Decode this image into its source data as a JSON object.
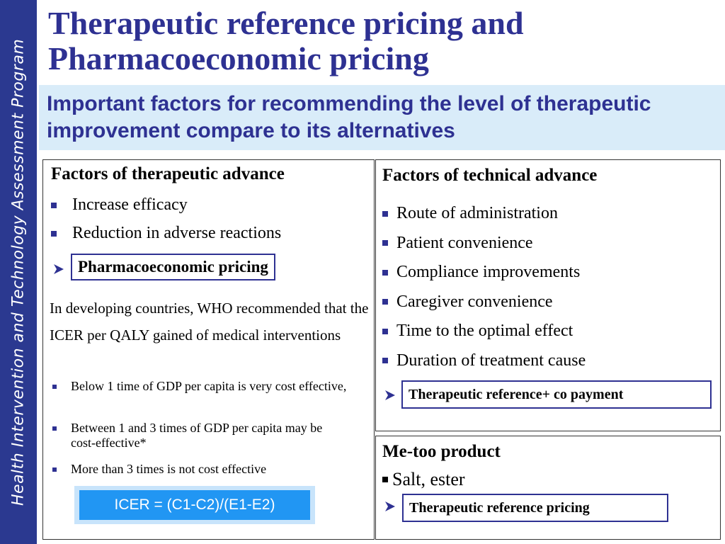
{
  "sidebar": "Health Intervention and Technology Assessment Program",
  "header": {
    "title": "Therapeutic reference pricing and Pharmacoeconomic pricing",
    "subtitle": "Important factors for recommending the level of therapeutic improvement compare to its alternatives"
  },
  "left_panel": {
    "heading": "Factors of therapeutic advance",
    "bullets": [
      "Increase efficacy",
      "Reduction in adverse reactions"
    ],
    "pricing": "Pharmacoeconomic pricing",
    "note": "In developing countries, WHO recommended that the ICER per QALY gained of medical interventions",
    "thresholds": [
      "Below 1 time of GDP per capita is very cost effective,",
      "Between 1 and 3 times of GDP per capita may be cost-effective*",
      "More than 3 times is not cost effective"
    ],
    "formula": "ICER = (C1-C2)/(E1-E2)"
  },
  "right_top": {
    "heading": "Factors of technical advance",
    "bullets": [
      "Route of administration",
      "Patient convenience",
      "Compliance improvements",
      "Caregiver convenience",
      "Time to the optimal effect",
      "Duration of treatment cause"
    ],
    "pricing": "Therapeutic reference+ co payment"
  },
  "right_bottom": {
    "heading": "Me-too product",
    "bullets": [
      "Salt, ester"
    ],
    "pricing": "Therapeutic reference pricing"
  }
}
